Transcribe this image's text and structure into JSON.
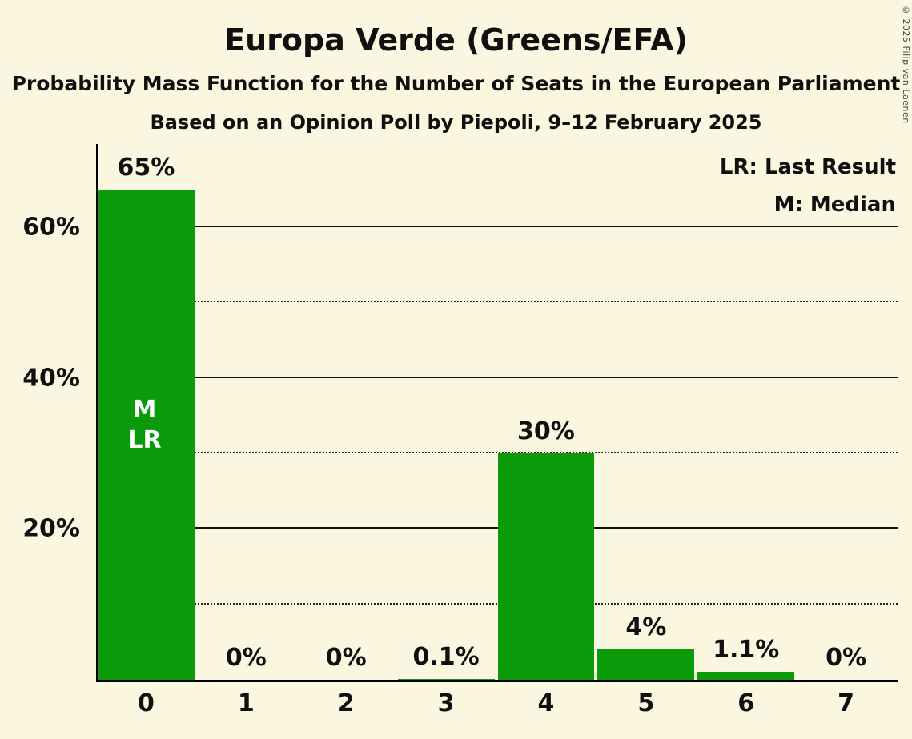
{
  "title": "Europa Verde (Greens/EFA)",
  "subtitle1": "Probability Mass Function for the Number of Seats in the European Parliament",
  "subtitle2": "Based on an Opinion Poll by Piepoli, 9–12 February 2025",
  "legend": {
    "line1": "LR: Last Result",
    "line2": "M: Median"
  },
  "copyright": "© 2025 Filip van Laenen",
  "chart_data": {
    "type": "bar",
    "title": "Europa Verde (Greens/EFA)",
    "xlabel": "",
    "ylabel": "",
    "categories": [
      "0",
      "1",
      "2",
      "3",
      "4",
      "5",
      "6",
      "7"
    ],
    "values": [
      65,
      0,
      0,
      0.1,
      30,
      4,
      1.1,
      0
    ],
    "bar_labels": [
      "65%",
      "0%",
      "0%",
      "0.1%",
      "30%",
      "4%",
      "1.1%",
      "0%"
    ],
    "bar_annotations": [
      {
        "index": 0,
        "lines": [
          "M",
          "LR"
        ]
      }
    ],
    "ylim": [
      0,
      71
    ],
    "gridlines": [
      {
        "value": 10,
        "style": "dotted"
      },
      {
        "value": 20,
        "style": "solid",
        "label": "20%"
      },
      {
        "value": 30,
        "style": "dotted"
      },
      {
        "value": 40,
        "style": "solid",
        "label": "40%"
      },
      {
        "value": 50,
        "style": "dotted"
      },
      {
        "value": 60,
        "style": "solid",
        "label": "60%"
      }
    ],
    "legend_position": "top-right",
    "grid": true,
    "bar_color": "#0A9A0A",
    "background_color": "#FBF6E0",
    "annotation_color": "#FFFFFF"
  }
}
